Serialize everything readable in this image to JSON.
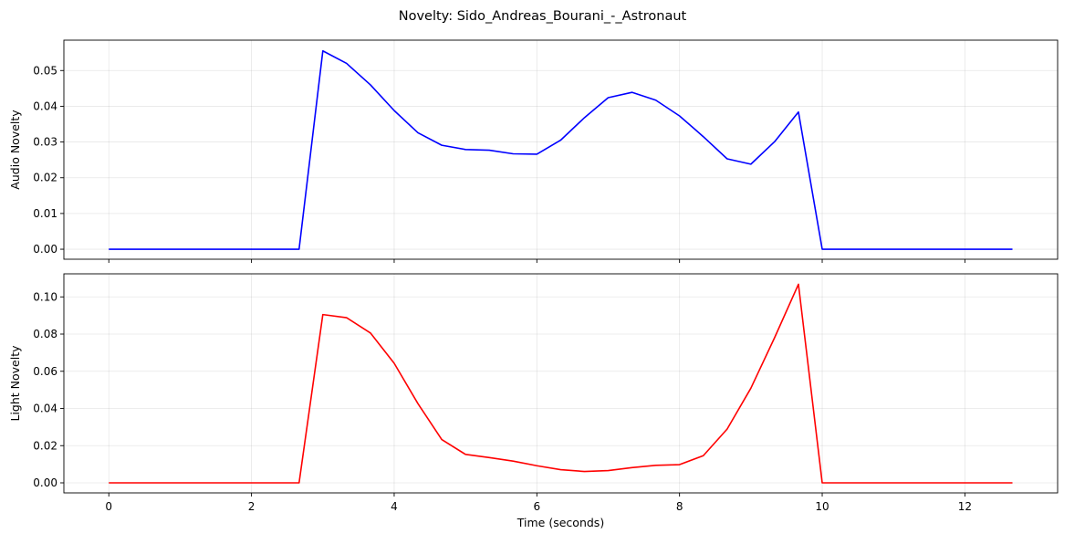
{
  "figure": {
    "title": "Novelty: Sido_Andreas_Bourani_-_Astronaut"
  },
  "chart_data": [
    {
      "type": "line",
      "title": "",
      "xlabel": "",
      "ylabel": "Audio Novelty",
      "xlim": [
        -0.63,
        13.3
      ],
      "ylim": [
        -0.0028,
        0.0585
      ],
      "xticks": [
        0,
        2,
        4,
        6,
        8,
        10,
        12
      ],
      "xtick_labels_shown": false,
      "yticks": [
        0.0,
        0.01,
        0.02,
        0.03,
        0.04,
        0.05
      ],
      "ytick_labels": [
        "0.00",
        "0.01",
        "0.02",
        "0.03",
        "0.04",
        "0.05"
      ],
      "grid": true,
      "series": [
        {
          "color": "#0000ff",
          "x": [
            0,
            0.333,
            0.667,
            1.0,
            1.333,
            1.667,
            2.0,
            2.333,
            2.667,
            3.0,
            3.333,
            3.667,
            4.0,
            4.333,
            4.667,
            5.0,
            5.333,
            5.667,
            6.0,
            6.333,
            6.667,
            7.0,
            7.333,
            7.667,
            8.0,
            8.333,
            8.667,
            9.0,
            9.333,
            9.667,
            10.0,
            10.333,
            10.667,
            11.0,
            11.333,
            11.667,
            12.0,
            12.333,
            12.667
          ],
          "y": [
            0,
            0,
            0,
            0,
            0,
            0,
            0,
            0,
            0,
            0.0555,
            0.052,
            0.046,
            0.0388,
            0.0326,
            0.0291,
            0.0279,
            0.0277,
            0.0267,
            0.0266,
            0.0305,
            0.0368,
            0.0424,
            0.0439,
            0.0417,
            0.0373,
            0.0315,
            0.0253,
            0.0238,
            0.0301,
            0.0384,
            0,
            0,
            0,
            0,
            0,
            0,
            0,
            0,
            0
          ]
        }
      ]
    },
    {
      "type": "line",
      "title": "",
      "xlabel": "Time (seconds)",
      "ylabel": "Light Novelty",
      "xlim": [
        -0.63,
        13.3
      ],
      "ylim": [
        -0.0054,
        0.1124
      ],
      "xticks": [
        0,
        2,
        4,
        6,
        8,
        10,
        12
      ],
      "xtick_labels": [
        "0",
        "2",
        "4",
        "6",
        "8",
        "10",
        "12"
      ],
      "yticks": [
        0.0,
        0.02,
        0.04,
        0.06,
        0.08,
        0.1
      ],
      "ytick_labels": [
        "0.00",
        "0.02",
        "0.04",
        "0.06",
        "0.08",
        "0.10"
      ],
      "grid": true,
      "series": [
        {
          "color": "#ff0000",
          "x": [
            0,
            0.333,
            0.667,
            1.0,
            1.333,
            1.667,
            2.0,
            2.333,
            2.667,
            3.0,
            3.333,
            3.667,
            4.0,
            4.333,
            4.667,
            5.0,
            5.333,
            5.667,
            6.0,
            6.333,
            6.667,
            7.0,
            7.333,
            7.667,
            8.0,
            8.333,
            8.667,
            9.0,
            9.333,
            9.667,
            10.0,
            10.333,
            10.667,
            11.0,
            11.333,
            11.667,
            12.0,
            12.333,
            12.667
          ],
          "y": [
            0,
            0,
            0,
            0,
            0,
            0,
            0,
            0,
            0,
            0.0905,
            0.0888,
            0.0806,
            0.0643,
            0.0426,
            0.0233,
            0.0153,
            0.0136,
            0.0117,
            0.0092,
            0.0071,
            0.0061,
            0.0066,
            0.0082,
            0.0094,
            0.0098,
            0.0146,
            0.0289,
            0.0509,
            0.0781,
            0.1068,
            0,
            0,
            0,
            0,
            0,
            0,
            0,
            0,
            0
          ]
        }
      ]
    }
  ]
}
